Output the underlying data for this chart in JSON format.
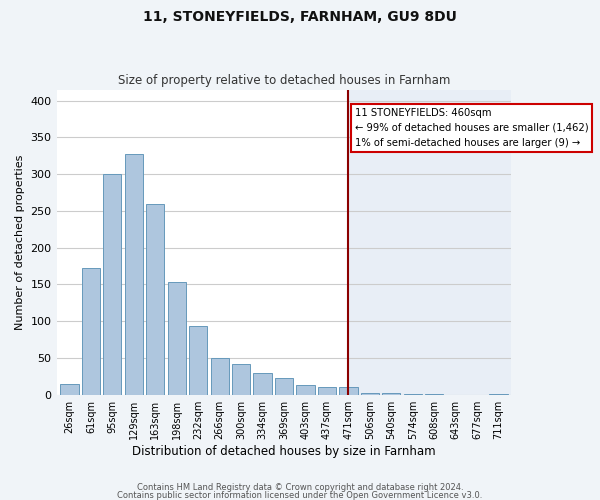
{
  "title": "11, STONEYFIELDS, FARNHAM, GU9 8DU",
  "subtitle": "Size of property relative to detached houses in Farnham",
  "xlabel": "Distribution of detached houses by size in Farnham",
  "ylabel": "Number of detached properties",
  "bar_labels": [
    "26sqm",
    "61sqm",
    "95sqm",
    "129sqm",
    "163sqm",
    "198sqm",
    "232sqm",
    "266sqm",
    "300sqm",
    "334sqm",
    "369sqm",
    "403sqm",
    "437sqm",
    "471sqm",
    "506sqm",
    "540sqm",
    "574sqm",
    "608sqm",
    "643sqm",
    "677sqm",
    "711sqm"
  ],
  "bar_values": [
    15,
    172,
    300,
    328,
    259,
    153,
    93,
    50,
    42,
    29,
    23,
    13,
    10,
    10,
    3,
    2,
    1,
    1,
    0,
    0,
    1
  ],
  "bar_color": "#aec6de",
  "bar_edge_color": "#6699bb",
  "vline_index": 13,
  "vline_color": "#8b0000",
  "bg_left_color": "#ffffff",
  "bg_right_color": "#e8eef6",
  "annotation_title": "11 STONEYFIELDS: 460sqm",
  "annotation_line1": "← 99% of detached houses are smaller (1,462)",
  "annotation_line2": "1% of semi-detached houses are larger (9) →",
  "annotation_box_facecolor": "#ffffff",
  "annotation_box_edgecolor": "#cc0000",
  "grid_color": "#cccccc",
  "ylim": [
    0,
    415
  ],
  "yticks": [
    0,
    50,
    100,
    150,
    200,
    250,
    300,
    350,
    400
  ],
  "footer1": "Contains HM Land Registry data © Crown copyright and database right 2024.",
  "footer2": "Contains public sector information licensed under the Open Government Licence v3.0.",
  "fig_bg_color": "#f0f4f8"
}
